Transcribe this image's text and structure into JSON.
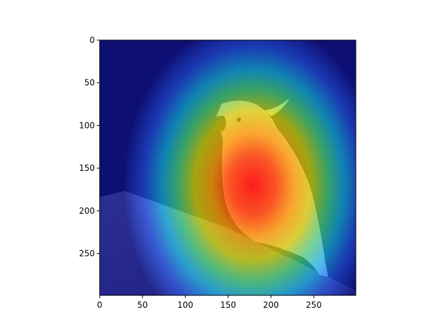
{
  "figure": {
    "description_visible": false
  },
  "chart_data": {
    "type": "heatmap",
    "title": "",
    "xlabel": "",
    "ylabel": "",
    "xlim": [
      0,
      299
    ],
    "ylim": [
      299,
      0
    ],
    "x_ticks": [
      0,
      50,
      100,
      150,
      200,
      250
    ],
    "y_ticks": [
      0,
      50,
      100,
      150,
      200,
      250
    ],
    "colormap": "jet",
    "overlay_on_photo": true,
    "photo_subject": "pink cockatoo perched on a wooden ledge",
    "heat_peak": {
      "x": 180,
      "y": 170
    },
    "heat_spread": {
      "x": 70,
      "y": 95
    }
  },
  "colors": {
    "frame": "#000000",
    "background": "#ffffff",
    "jet_low": "#00008f",
    "jet_mid": "#80ff80",
    "jet_high": "#ff0000"
  }
}
